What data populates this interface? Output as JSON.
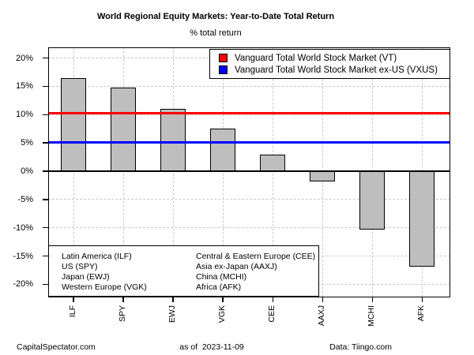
{
  "chart_data": {
    "type": "bar",
    "title": "World Regional Equity Markets: Year-to-Date Total Return",
    "subtitle": "% total return",
    "categories": [
      "ILF",
      "SPY",
      "EWJ",
      "VGK",
      "CEE",
      "AAXJ",
      "MCHI",
      "AFK"
    ],
    "values": [
      16.4,
      14.8,
      11.0,
      7.5,
      3.0,
      -1.8,
      -10.3,
      -16.9
    ],
    "xlabel": "",
    "ylabel": "",
    "ylim": [
      -22.3,
      21.9
    ],
    "yticks": [
      20,
      15,
      10,
      5,
      0,
      -5,
      -10,
      -15,
      -20
    ],
    "ytick_labels": [
      "20%",
      "15%",
      "10%",
      "5%",
      "0%",
      "-5%",
      "-10%",
      "-15%",
      "-20%"
    ],
    "bar_color": "#BEBEBE",
    "bar_border_color": "#000000",
    "grid": {
      "style": "dashed",
      "color": "#C9C9C9",
      "horizontal": true,
      "vertical": true
    },
    "legend_position": "top-right",
    "reference_lines": [
      {
        "label": "Vanguard Total World Stock Market (VT)",
        "value": 10.2,
        "color": "#FF0000"
      },
      {
        "label": "Vanguard Total World Stock Market ex-US (VXUS)",
        "value": 5.1,
        "color": "#0000FF"
      }
    ]
  },
  "region_key": {
    "left": [
      "Latin America (ILF)",
      "US (SPY)",
      "Japan (EWJ)",
      "Western Europe (VGK)"
    ],
    "right": [
      "Central & Eastern Europe (CEE)",
      "Asia ex-Japan (AAXJ)",
      "China (MCHI)",
      "Africa (AFK)"
    ]
  },
  "footer": {
    "left": "CapitalSpectator.com",
    "center": "as of  2023-11-09",
    "right": "Data: Tiingo.com"
  }
}
